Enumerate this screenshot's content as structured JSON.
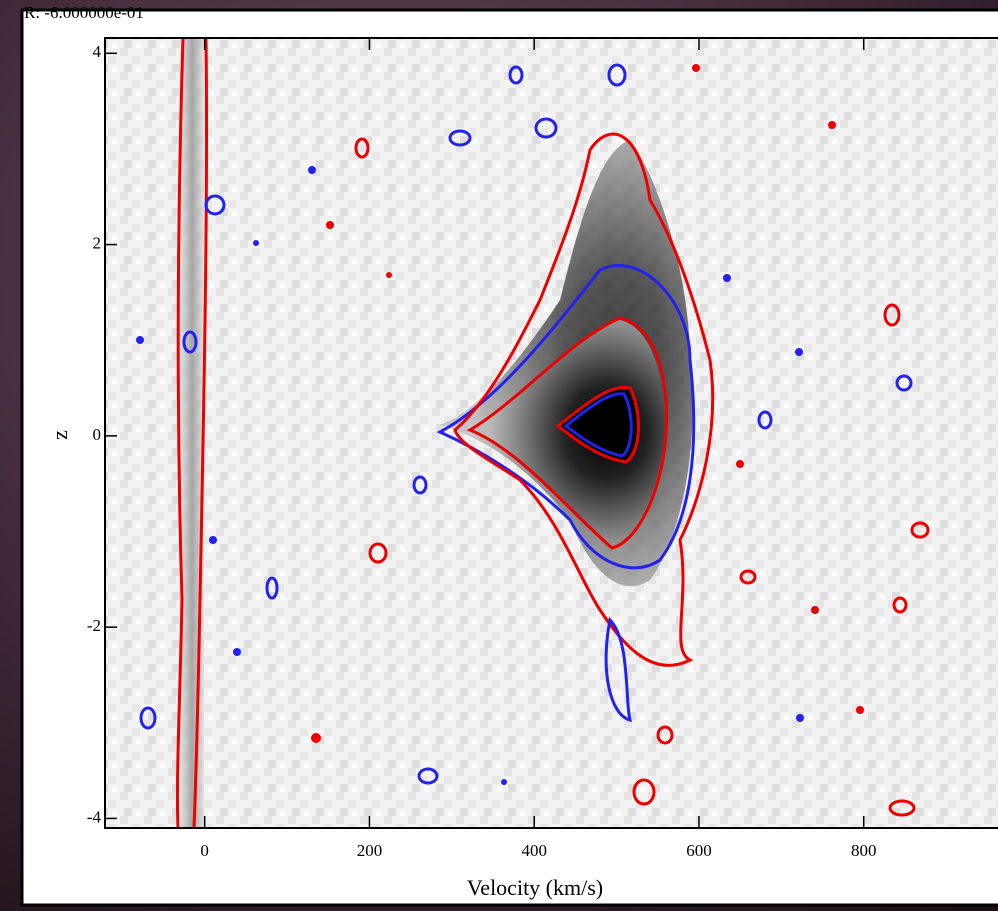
{
  "chart_data": {
    "type": "image",
    "header": "R: -6.000000e-01",
    "x_label": "Velocity (km/s)",
    "y_label": "z",
    "xlim": [
      -121,
      963
    ],
    "ylim": [
      -4.1,
      4.16
    ],
    "xticks": [
      0,
      200,
      400,
      600,
      800
    ],
    "yticks": [
      -4,
      -2,
      0,
      2,
      4
    ]
  }
}
